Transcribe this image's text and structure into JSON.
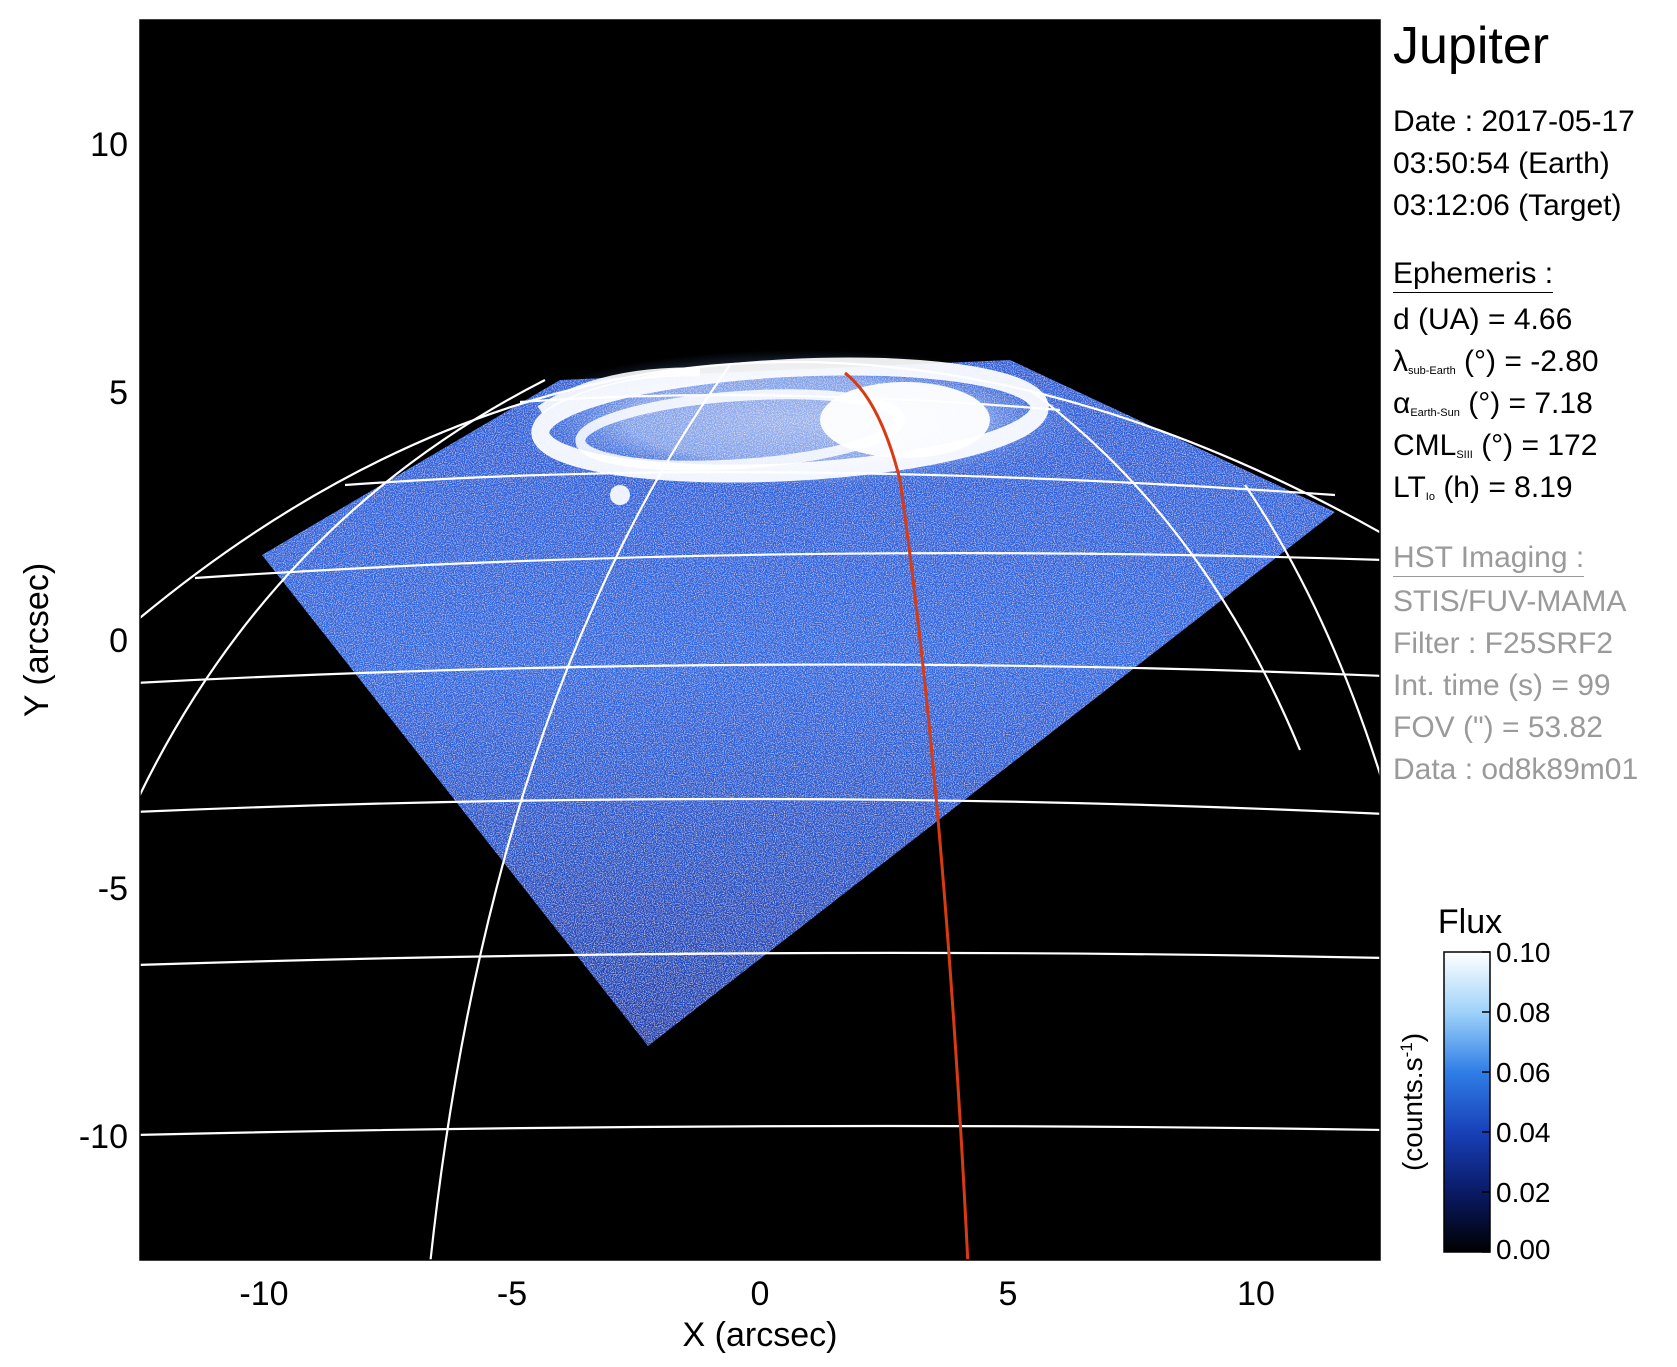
{
  "figure": {
    "x_axis": {
      "label": "X (arcsec)",
      "ticks": [
        "-10",
        "-5",
        "0",
        "5",
        "10"
      ],
      "range": [
        -12.5,
        12.5
      ]
    },
    "y_axis": {
      "label": "Y (arcsec)",
      "ticks": [
        "10",
        "5",
        "0",
        "-5",
        "-10"
      ],
      "range": [
        -12.5,
        12.5
      ]
    },
    "colors": {
      "background": "#000000",
      "grid": "#ffffff",
      "trace": "#d83a12"
    }
  },
  "info": {
    "title": "Jupiter",
    "date": "Date : 2017-05-17",
    "time_earth": "03:50:54 (Earth)",
    "time_target": "03:12:06 (Target)",
    "ephemeris": {
      "heading": "Ephemeris :",
      "distance": "d (UA)    = 4.66",
      "lat_symbol": "λ",
      "lat_sub": "sub-Earth",
      "lat_rest": " (°) = -2.80",
      "phase_symbol": "α",
      "phase_sub": "Earth-Sun",
      "phase_rest": " (°) = 7.18",
      "cml_main": "CML",
      "cml_sub": "SIII",
      "cml_rest": " (°) = 172",
      "lt_main": "LT",
      "lt_sub": "Io",
      "lt_rest": " (h) = 8.19"
    },
    "hst": {
      "heading": "HST Imaging :",
      "instrument": "STIS/FUV-MAMA",
      "filter": "Filter : F25SRF2",
      "int_time": "Int. time (s) = 99",
      "fov": "FOV (\") = 53.82",
      "data": "Data : od8k89m01"
    }
  },
  "colorbar": {
    "title": "Flux",
    "unit_label": "(counts.s",
    "unit_sup": "-1",
    "unit_close": ")",
    "ticks": [
      "0.10",
      "0.08",
      "0.06",
      "0.04",
      "0.02",
      "0.00"
    ],
    "range": [
      0.0,
      0.1
    ],
    "gradient_stops": [
      "#000000",
      "#0a1a66",
      "#1840b8",
      "#2f7ee6",
      "#9fd2fa",
      "#ffffff"
    ]
  }
}
